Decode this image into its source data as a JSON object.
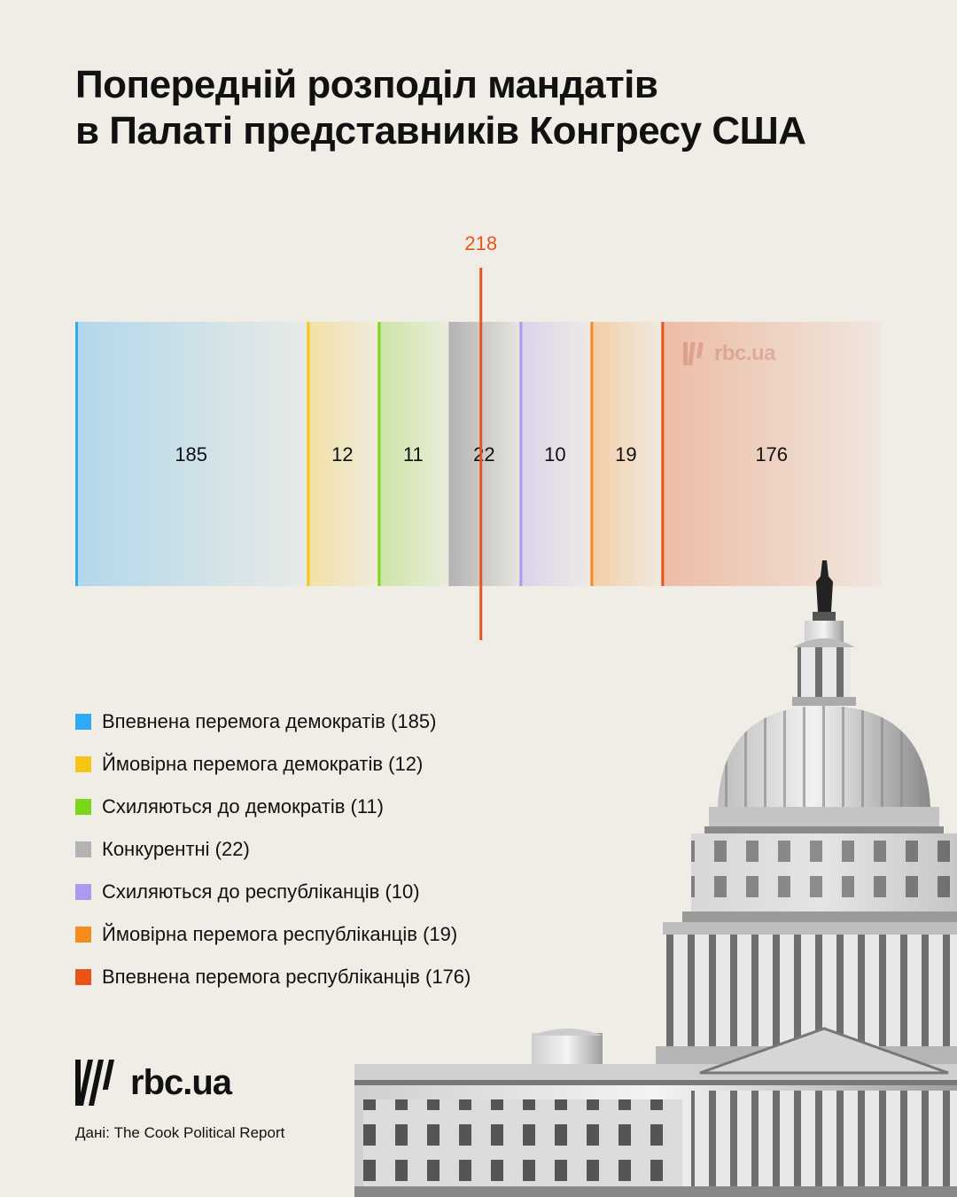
{
  "title_lines": [
    "Попередній розподіл мандатів",
    "в Палаті представників Конгресу США"
  ],
  "chart_data": {
    "type": "bar",
    "orientation": "horizontal-stacked",
    "total": 435,
    "threshold": {
      "value": 218,
      "label": "218",
      "color": "#e8531c"
    },
    "segments": [
      {
        "label": "Впевнена перемога демократів",
        "value": 185,
        "value_label": "185",
        "color": "#2ea9f5"
      },
      {
        "label": "Ймовірна перемога демократів",
        "value": 12,
        "value_label": "12",
        "color": "#f5c518"
      },
      {
        "label": "Схиляються до демократів",
        "value": 11,
        "value_label": "11",
        "color": "#7cd619"
      },
      {
        "label": "Конкурентні",
        "value": 22,
        "value_label": "22",
        "color": "#b3b3b3"
      },
      {
        "label": "Схиляються до республіканців",
        "value": 10,
        "value_label": "10",
        "color": "#ad99ee"
      },
      {
        "label": "Ймовірна перемога республіканців",
        "value": 19,
        "value_label": "19",
        "color": "#f68b1f"
      },
      {
        "label": "Впевнена перемога республіканців",
        "value": 176,
        "value_label": "176",
        "color": "#e8531c"
      }
    ]
  },
  "legend": [
    {
      "text": "Впевнена перемога демократів (185)",
      "color": "#2ea9f5"
    },
    {
      "text": "Ймовірна перемога демократів (12)",
      "color": "#f5c518"
    },
    {
      "text": "Схиляються до демократів (11)",
      "color": "#7cd619"
    },
    {
      "text": "Конкурентні (22)",
      "color": "#b3b3b3"
    },
    {
      "text": "Схиляються до республіканців (10)",
      "color": "#ad99ee"
    },
    {
      "text": "Ймовірна перемога республіканців (19)",
      "color": "#f68b1f"
    },
    {
      "text": "Впевнена перемога республіканців (176)",
      "color": "#e8531c"
    }
  ],
  "brand": {
    "logo_text": "rbc.ua",
    "watermark_text": "rbc.ua"
  },
  "source": "Дані: The Cook Political Report",
  "image": {
    "icon": "capitol-building-icon"
  }
}
